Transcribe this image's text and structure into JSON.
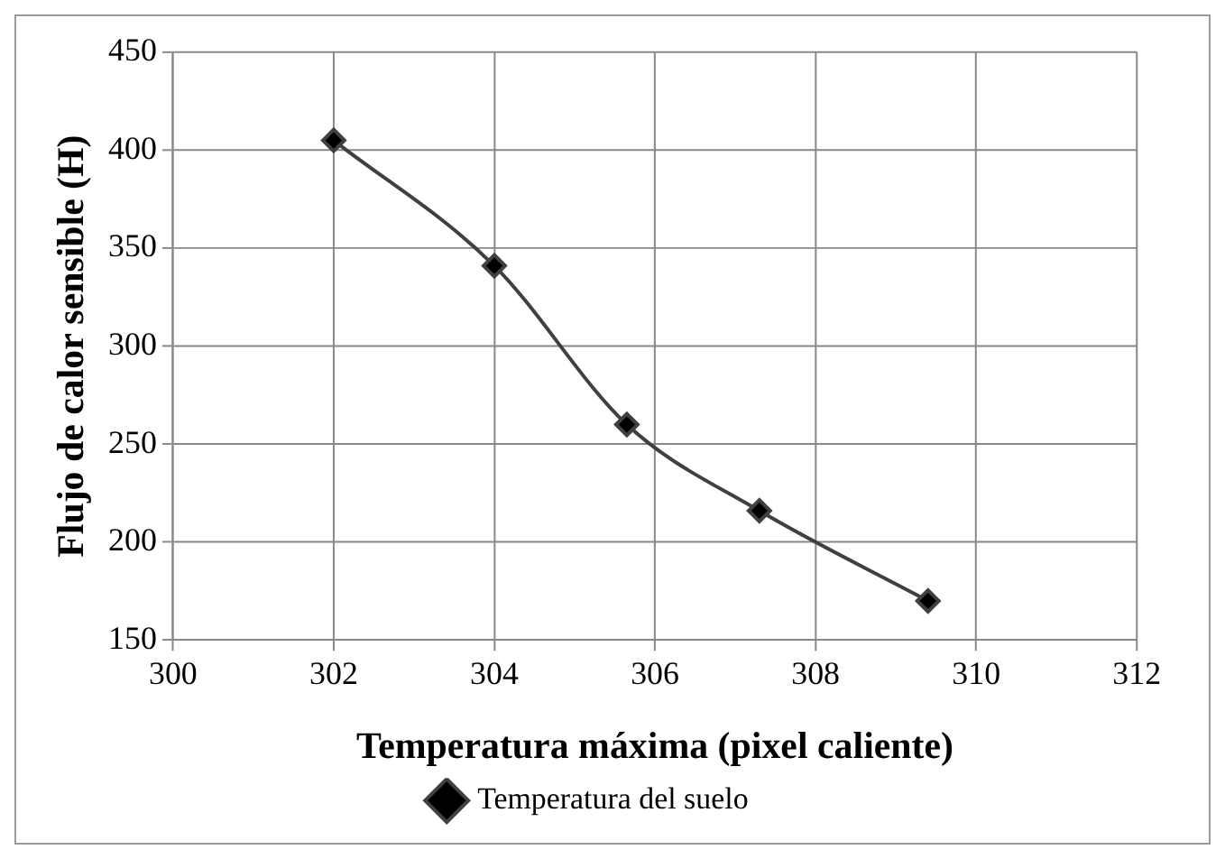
{
  "chart_data": {
    "type": "line",
    "xlabel": "Temperatura máxima (pixel caliente)",
    "ylabel": "Flujo de calor sensible (H)",
    "x": [
      302,
      304,
      305.65,
      307.3,
      309.4
    ],
    "series": [
      {
        "name": "Temperatura del suelo",
        "color": "#404040",
        "values": [
          405,
          341,
          260,
          216,
          170
        ]
      }
    ],
    "xlim": [
      300,
      312
    ],
    "xticks": [
      300,
      302,
      304,
      306,
      308,
      310,
      312
    ],
    "ylim": [
      150,
      450
    ],
    "yticks": [
      150,
      200,
      250,
      300,
      350,
      400,
      450
    ],
    "grid": true,
    "legend": "bottom",
    "marker": "diamond",
    "line_style": "solid"
  }
}
